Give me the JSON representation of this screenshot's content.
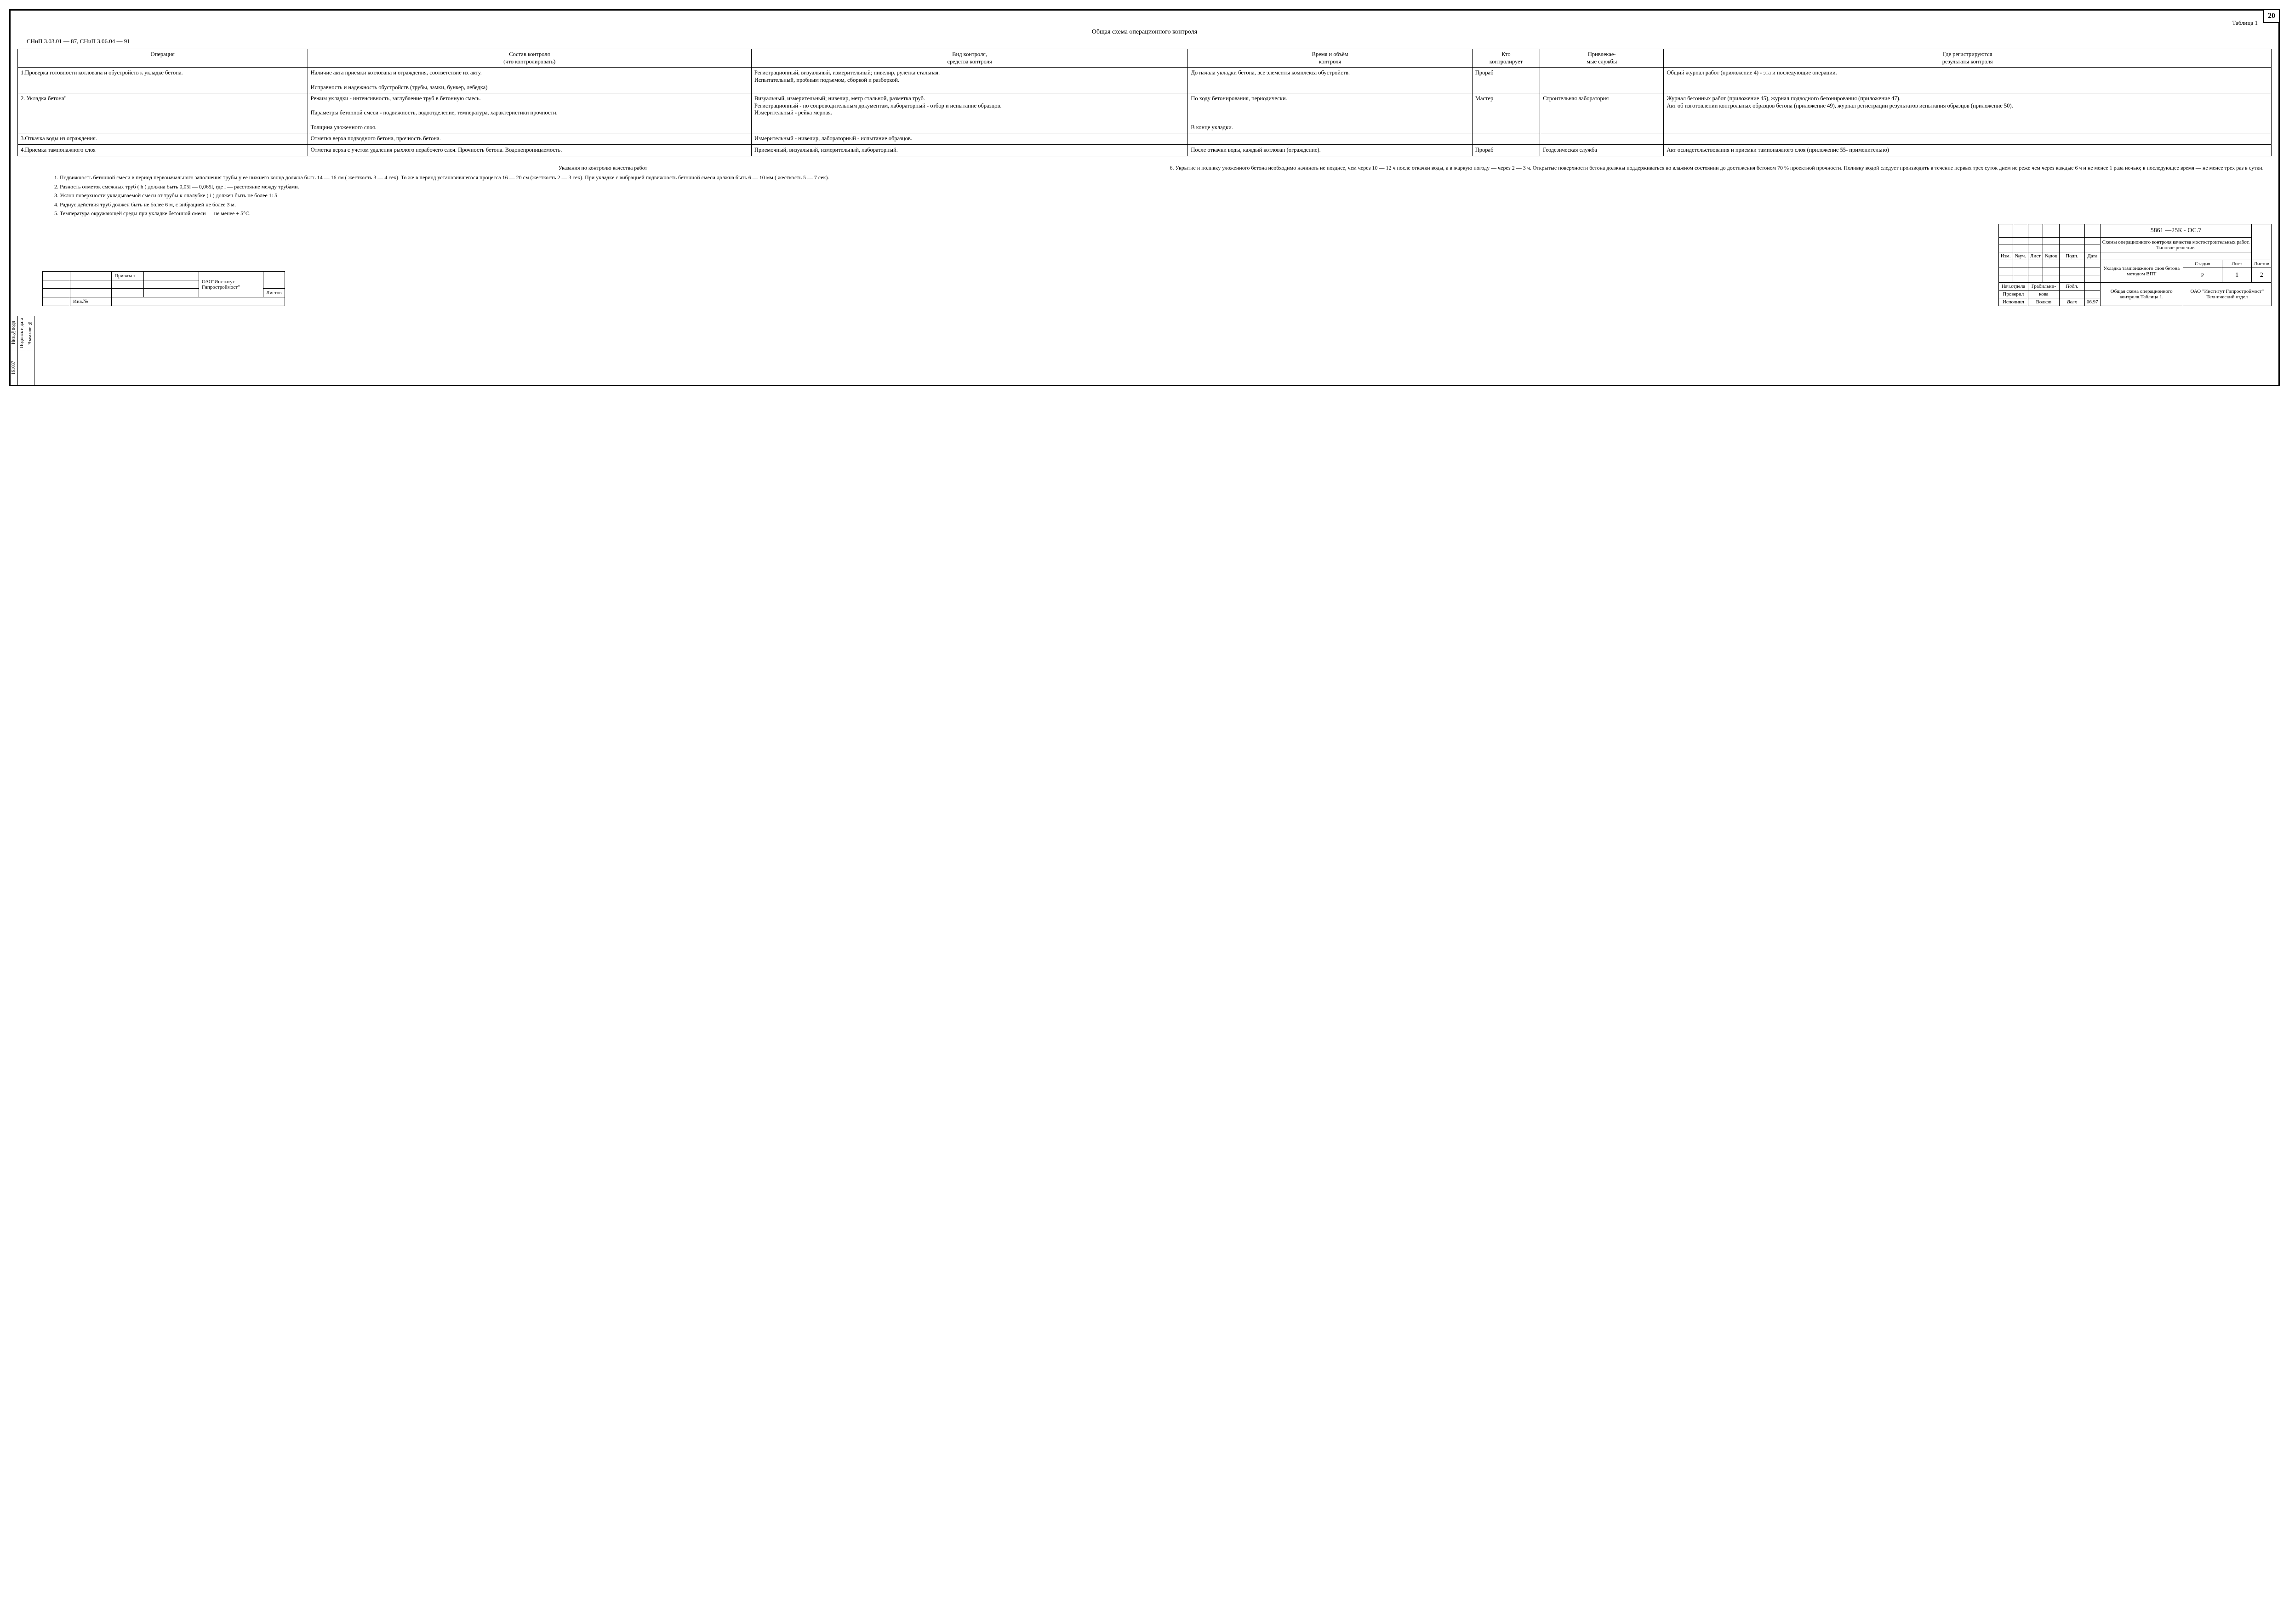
{
  "page_number": "20",
  "table_label": "Таблица 1",
  "title": "Общая схема операционного контроля",
  "snip_ref": "СНиП 3.03.01 — 87,  СНиП 3.06.04 — 91",
  "columns": [
    "Операция",
    "Состав контроля\n(что контролировать)",
    "Вид контроля,\nсредства контроля",
    "Время и объём\nконтроля",
    "Кто\nконтролирует",
    "Привлекае-\nмые службы",
    "Где регистрируются\nрезультаты контроля"
  ],
  "rows": [
    {
      "op": "1.Проверка готовности котлована и обустройств к укладке бетона.",
      "sost": "Наличие акта приемки котлована и ограждения, соответствие их акту.\n\nИсправность и надежность обустройств (трубы, замки, бункер, лебедка)",
      "vid": "Регистрационный, визуальный, измерительный; нивелир, рулетка стальная.\nИспытательный, пробным подъемом, сборкой и разборкой.",
      "vrem": "До начала укладки бетона, все элементы комплекса обустройств.",
      "kto": "Прораб",
      "priv": "",
      "reg": "Общий журнал работ (приложение 4) - эта и последующие операции."
    },
    {
      "op": "2. Укладка бетона\"",
      "sost": "Режим укладки - интенсивность, заглубление труб в бетонную смесь.\n\nПараметры бетонной смеси - подвижность, водоотделение, температура, характеристики прочности.\n\nТолщина уложенного слоя.",
      "vid": "Визуальный, измерительный; нивелир, метр стальной, разметка труб.\nРегистрационный - по сопроводительным документам, лабораторный - отбор и испытание образцов.\nИзмерительный - рейка мерная.",
      "vrem": "По ходу бетонирования, периодически.\n\n\n\nВ конце укладки.",
      "kto": "Мастер",
      "priv": "Строительная лаборатория",
      "reg": "Журнал бетонных работ (приложение 45), журнал подводного бетонирования (приложение 47).\nАкт об изготовлении контрольных образцов бетона (приложение 49), журнал регистрации результатов испытания образцов (приложение 50)."
    },
    {
      "op": "3.Откачка воды из ограждения.",
      "sost": "Отметка верха подводного бетона, прочность бетона.",
      "vid": "Измерительный - нивелир, лабораторный - испытание образцов.",
      "vrem": "",
      "kto": "",
      "priv": "",
      "reg": ""
    },
    {
      "op": "4.Приемка тампонажного слоя",
      "sost": "Отметка верха с учетом удаления рыхлого нерабочего слоя. Прочность бетона. Водонепроницаемость.",
      "vid": "Приемочный, визуальный, измерительный, лабораторный.",
      "vrem": "После откачки воды, каждый котлован (ограждение).",
      "kto": "Прораб",
      "priv": "Геодезическая служба",
      "reg": "Акт освидетельствования и приемки тампонажного слоя (приложение 55- применительно)"
    }
  ],
  "notes_title": "Указания по контролю качества работ",
  "notes_left": [
    "1. Подвижность бетонной смеси в период первоначального заполнения трубы у ее нижнего конца должна быть 14 — 16 см ( жесткость 3 — 4 сек). То же в период установившегося процесса 16 — 20 см (жесткость 2 — 3 сек). При укладке с вибрацией подвижность бетонной смеси должна быть 6 — 10 мм ( жесткость 5 — 7 сек).",
    "2. Разность отметок смежных труб ( h ) должна быть 0,05l — 0,065l, где l — расстояние между трубами.",
    "3. Уклон поверхности укладываемой смеси от трубы к опалубке ( i ) должен быть не более 1: 5.",
    "4. Радиус действия труб должен быть не более 6 м, с вибрацией не более 3 м.",
    "5. Температура окружающей среды при укладке бетонной смеси — не менее + 5°С."
  ],
  "notes_right": [
    "6. Укрытие и поливку уложенного бетона необходимо начинать не позднее, чем через 10 — 12 ч после откачки воды, а в жаркую погоду — через 2 — 3 ч. Открытые поверхности бетона должны поддерживаться во влажном состоянии до достижения бетоном 70 % проектной прочности. Поливку водой следует производить в течение первых трех суток днем не реже чем через каждые 6 ч и не менее 1 раза ночью; в последующее время — не менее трех раз в сутки."
  ],
  "side": {
    "c1": "Инв.№подл",
    "c2": "Подпись и дата",
    "c3": "Взам.инв.№",
    "num": "161037"
  },
  "bind": {
    "h1": "Привязал",
    "org": "ОАО\"Институт\nГипростроймост\"",
    "h_list": "Листов",
    "inv": "Инв.№"
  },
  "stamp": {
    "hdr": [
      "Изм.",
      "№уч.",
      "Лист",
      "№док",
      "Подп.",
      "Дата"
    ],
    "code": "5861 —25К - ОС.7",
    "title1": "Схемы операционного контроля качества мостостроительных работ.\nТиповое решение.",
    "title2": "Укладка тампонажного слоя бетона методом ВПТ",
    "title3": "Общая схема операционного контроля.Таблица 1.",
    "st_h": "Стадия",
    "st_v": "Р",
    "l_h": "Лист",
    "l_v": "1",
    "ls_h": "Листов",
    "ls_v": "2",
    "org": "ОАО \"Институт Гипростроймост\"\nТехнический отдел",
    "r1a": "Нач.отдела",
    "r1b": "Грабильни-",
    "r1c": "",
    "r1d": "",
    "r2a": "Проверил",
    "r2b": "кова",
    "r2c": "",
    "r2d": "",
    "r3a": "Исполнил",
    "r3b": "Волков",
    "r3c": "",
    "r3d": "06.97"
  }
}
